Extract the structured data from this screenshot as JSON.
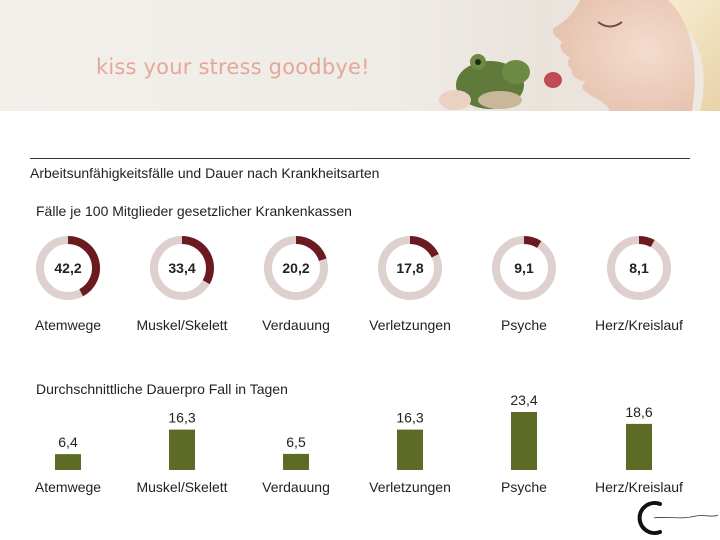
{
  "banner": {
    "slogan": "kiss your stress goodbye!"
  },
  "colors": {
    "donut_fill": "#6b1a20",
    "donut_track": "#ddd0ce",
    "bar": "#5c6b26",
    "slogan": "#e3a898"
  },
  "chart_data": [
    {
      "type": "pie",
      "title": "Arbeitsunfähigkeitsfälle und Dauer nach Krankheitsarten",
      "subtitle": "Fälle je 100 Mitglieder gesetzlicher Krankenkassen",
      "categories": [
        "Atemwege",
        "Muskel/Skelett",
        "Verdauung",
        "Verletzungen",
        "Psyche",
        "Herz/Kreislauf"
      ],
      "values": [
        42.2,
        33.4,
        20.2,
        17.8,
        9.1,
        8.1
      ],
      "labels": [
        "42,2",
        "33,4",
        "20,2",
        "17,8",
        "9,1",
        "8,1"
      ]
    },
    {
      "type": "bar",
      "subtitle": "Durchschnittliche Dauerpro Fall in Tagen",
      "categories": [
        "Atemwege",
        "Muskel/Skelett",
        "Verdauung",
        "Verletzungen",
        "Psyche",
        "Herz/Kreislauf"
      ],
      "values": [
        6.4,
        16.3,
        6.5,
        16.3,
        23.4,
        18.6
      ],
      "labels": [
        "6,4",
        "16,3",
        "6,5",
        "16,3",
        "23,4",
        "18,6"
      ],
      "ylim": [
        0,
        25
      ]
    }
  ]
}
